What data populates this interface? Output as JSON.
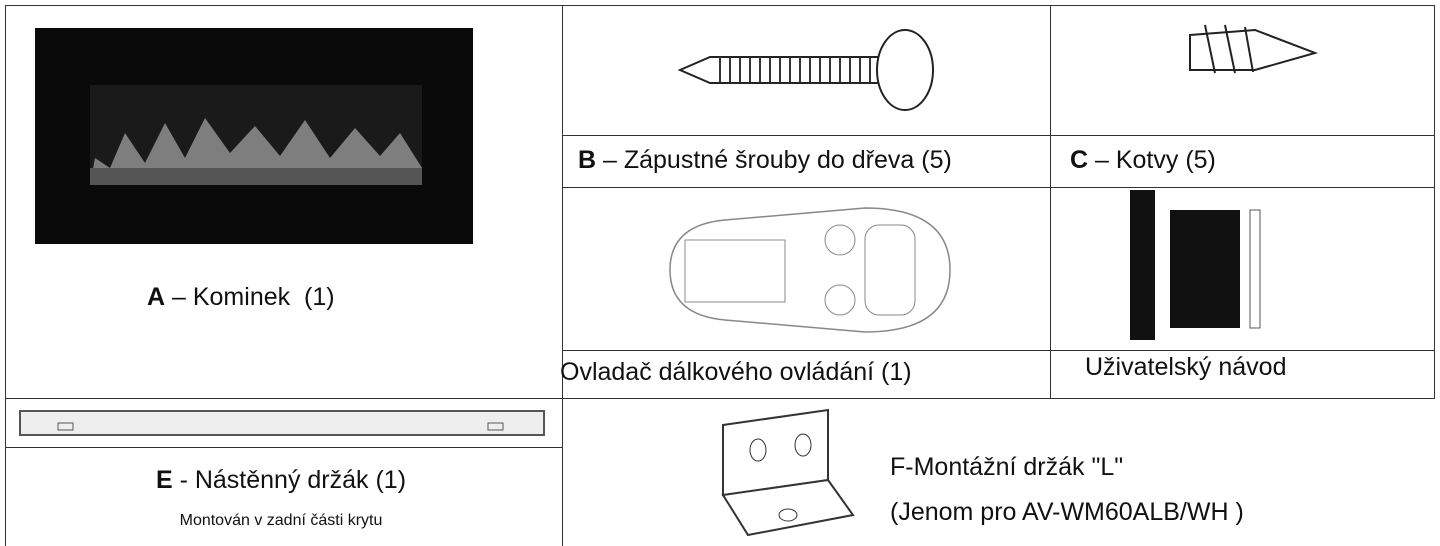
{
  "items": [
    {
      "letter": "A",
      "text": " – Kominek  (1)"
    },
    {
      "letter": "B",
      "text": " – Zápustné šrouby do dřeva (5)"
    },
    {
      "letter": "C",
      "text": " – Kotvy (5)"
    },
    {
      "text": "Ovladač dálkového ovládání (1)"
    },
    {
      "text": "Uživatelský návod"
    },
    {
      "letter": "E",
      "text": " - Nástěnný držák (1)",
      "note": "Montován v zadní části krytu"
    },
    {
      "lines": [
        "F-Montážní držák \"L\"",
        "(Jenom pro AV-WM60ALB/WH )"
      ]
    }
  ]
}
